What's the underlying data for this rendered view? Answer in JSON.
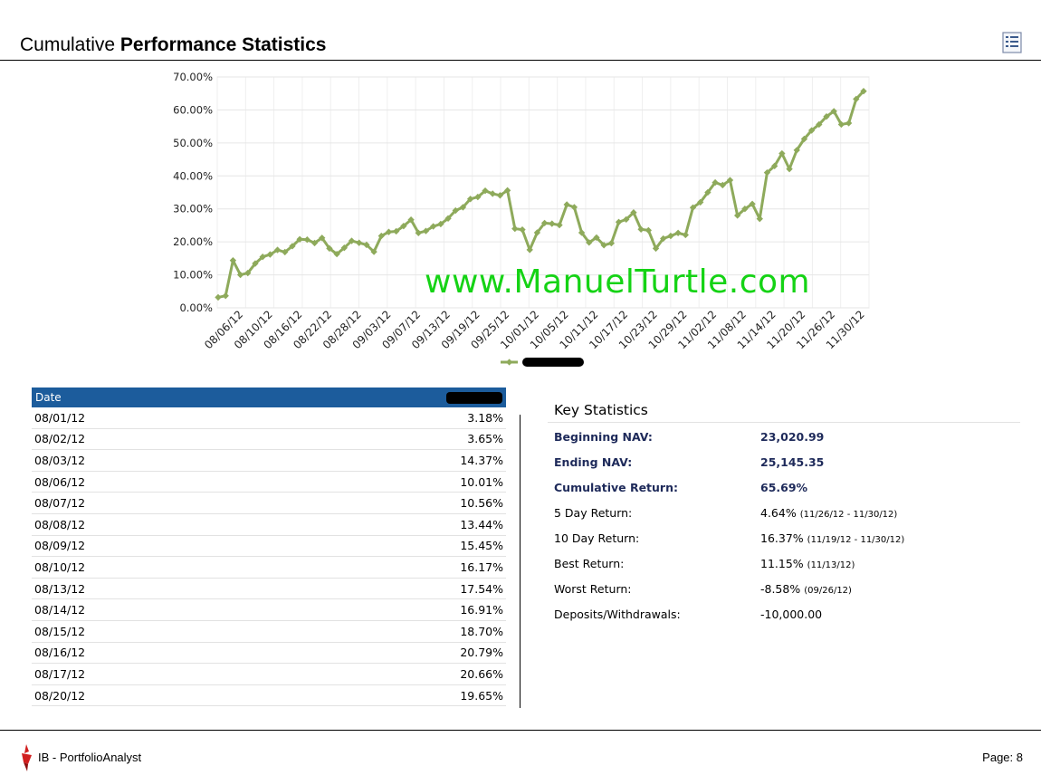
{
  "header": {
    "title_light": "Cumulative ",
    "title_bold": "Performance Statistics"
  },
  "watermark": "www.ManuelTurtle.com",
  "colors": {
    "series": "#8eaa5b",
    "table_header": "#1c5c9c",
    "watermark": "#15d315"
  },
  "chart_data": {
    "type": "line",
    "ylim": [
      0,
      70
    ],
    "yticks": [
      "0.00%",
      "10.00%",
      "20.00%",
      "30.00%",
      "40.00%",
      "50.00%",
      "60.00%",
      "70.00%"
    ],
    "xtick_labels": [
      "08/06/12",
      "08/10/12",
      "08/16/12",
      "08/22/12",
      "08/28/12",
      "09/03/12",
      "09/07/12",
      "09/13/12",
      "09/19/12",
      "09/25/12",
      "10/01/12",
      "10/05/12",
      "10/11/12",
      "10/17/12",
      "10/23/12",
      "10/29/12",
      "11/02/12",
      "11/08/12",
      "11/14/12",
      "11/20/12",
      "11/26/12",
      "11/30/12"
    ],
    "grid": true,
    "legend": "bottom",
    "series": [
      {
        "values": [
          3.18,
          3.65,
          14.37,
          10.01,
          10.56,
          13.44,
          15.45,
          16.17,
          17.54,
          16.91,
          18.7,
          20.79,
          20.66,
          19.65,
          21.2,
          18.0,
          16.3,
          18.2,
          20.3,
          19.7,
          19.1,
          17.0,
          21.8,
          23.0,
          23.2,
          24.8,
          26.7,
          22.7,
          23.3,
          24.7,
          25.4,
          27.1,
          29.5,
          30.5,
          33.0,
          33.6,
          35.5,
          34.6,
          34.1,
          35.6,
          24.0,
          23.7,
          17.6,
          22.8,
          25.7,
          25.5,
          25.1,
          31.3,
          30.5,
          22.8,
          19.8,
          21.3,
          19.0,
          19.6,
          26.0,
          26.8,
          28.9,
          23.8,
          23.5,
          18.0,
          21.0,
          21.8,
          22.7,
          22.1,
          30.4,
          32.0,
          35.0,
          38.0,
          37.2,
          38.7,
          28.0,
          30.0,
          31.5,
          27.0,
          41.0,
          43.0,
          46.8,
          42.1,
          47.8,
          51.2,
          53.8,
          55.6,
          58.0,
          59.6,
          55.6,
          56.0,
          63.3,
          65.69
        ]
      }
    ]
  },
  "table": {
    "columns": [
      "Date"
    ],
    "rows": [
      {
        "date": "08/01/12",
        "value": "3.18%"
      },
      {
        "date": "08/02/12",
        "value": "3.65%"
      },
      {
        "date": "08/03/12",
        "value": "14.37%"
      },
      {
        "date": "08/06/12",
        "value": "10.01%"
      },
      {
        "date": "08/07/12",
        "value": "10.56%"
      },
      {
        "date": "08/08/12",
        "value": "13.44%"
      },
      {
        "date": "08/09/12",
        "value": "15.45%"
      },
      {
        "date": "08/10/12",
        "value": "16.17%"
      },
      {
        "date": "08/13/12",
        "value": "17.54%"
      },
      {
        "date": "08/14/12",
        "value": "16.91%"
      },
      {
        "date": "08/15/12",
        "value": "18.70%"
      },
      {
        "date": "08/16/12",
        "value": "20.79%"
      },
      {
        "date": "08/17/12",
        "value": "20.66%"
      },
      {
        "date": "08/20/12",
        "value": "19.65%"
      }
    ]
  },
  "key_stats": {
    "title": "Key Statistics",
    "rows": [
      {
        "label": "Beginning NAV:",
        "value": "23,020.99",
        "range": ""
      },
      {
        "label": "Ending NAV:",
        "value": "25,145.35",
        "range": ""
      },
      {
        "label": "Cumulative Return:",
        "value": "65.69%",
        "range": ""
      },
      {
        "label": "5 Day Return:",
        "value": "4.64%",
        "range": "(11/26/12 - 11/30/12)"
      },
      {
        "label": "10 Day Return:",
        "value": "16.37%",
        "range": "(11/19/12 - 11/30/12)"
      },
      {
        "label": "Best Return:",
        "value": "11.15%",
        "range": "(11/13/12)"
      },
      {
        "label": "Worst Return:",
        "value": "-8.58%",
        "range": "(09/26/12)"
      },
      {
        "label": "Deposits/Withdrawals:",
        "value": "-10,000.00",
        "range": ""
      }
    ]
  },
  "footer": {
    "app": "IB - PortfolioAnalyst",
    "page": "Page: 8"
  }
}
